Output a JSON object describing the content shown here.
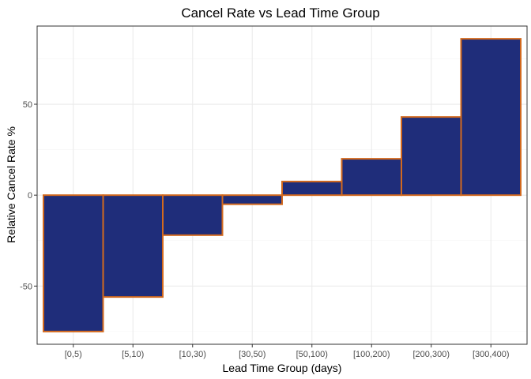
{
  "chart_data": {
    "type": "bar",
    "title": "Cancel Rate vs Lead Time Group",
    "xlabel": "Lead Time Group (days)",
    "ylabel": "Relative Cancel Rate %",
    "categories": [
      "[0,5)",
      "[5,10)",
      "[10,30)",
      "[30,50)",
      "[50,100)",
      "[100,200)",
      "[200,300)",
      "[300,400)"
    ],
    "values": [
      -75,
      -56,
      -22,
      -5,
      7.5,
      20,
      43,
      86
    ],
    "ylim": [
      -82,
      93
    ],
    "yticks": [
      -50,
      0,
      50
    ],
    "ytick_labels": [
      "-50",
      "0",
      "50"
    ],
    "grid": true,
    "legend": "none",
    "colors": {
      "bar_fill": "#1f2d7a",
      "bar_edge": "#d2691e",
      "grid_major": "#ebebeb",
      "grid_minor": "#f5f5f5",
      "panel_border": "#333333"
    }
  }
}
